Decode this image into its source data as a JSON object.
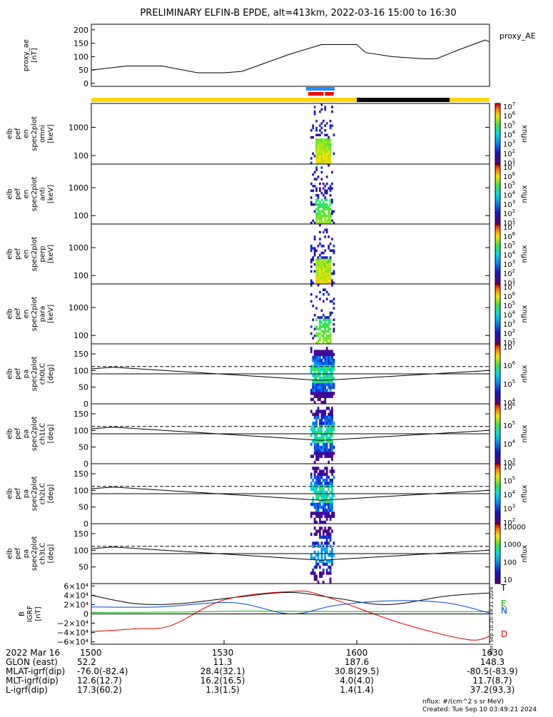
{
  "title": "PRELIMINARY ELFIN-B EPDE, alt=413km, 2022-03-16 15:00 to 16:30",
  "colors": {
    "line": "#000000",
    "bar_yellow": "#ffd800",
    "bar_black": "#000000",
    "bar_blue": "#1e90ff",
    "bar_red": "#ff0000",
    "grf_blue": "#0044cc",
    "grf_green": "#00aa00",
    "grf_red": "#dd0000"
  },
  "chart_data": [
    {
      "id": "proxy_ae",
      "type": "line",
      "ylabel": [
        "proxy_ae",
        "[nT]"
      ],
      "legend": "proxy_AE",
      "ylim": [
        0,
        210
      ],
      "yticks": [
        0,
        50,
        100,
        150,
        200
      ],
      "x": [
        0,
        8,
        16,
        24,
        30,
        34,
        45,
        52,
        60,
        62,
        68,
        75,
        78,
        83,
        89,
        90
      ],
      "values": [
        50,
        65,
        65,
        40,
        40,
        45,
        110,
        145,
        145,
        115,
        100,
        92,
        92,
        125,
        162,
        155
      ]
    },
    {
      "id": "status_bar",
      "type": "bar",
      "segments": [
        {
          "start": 0,
          "end": 60,
          "color": "yellow"
        },
        {
          "start": 60,
          "end": 81,
          "color": "black"
        },
        {
          "start": 81,
          "end": 90,
          "color": "yellow"
        }
      ],
      "markers": [
        {
          "start": 48.5,
          "end": 55.0,
          "color": "blue"
        },
        {
          "start": 49.0,
          "end": 52.5,
          "color": "red"
        },
        {
          "start": 52.8,
          "end": 54.8,
          "color": "red"
        }
      ]
    },
    {
      "id": "spec_omni",
      "type": "heatmap",
      "ylabel": [
        "elb",
        "pef",
        "en",
        "spec2plot",
        "omni",
        "[keV]"
      ],
      "yscale": "log",
      "ylim": [
        50,
        7000
      ],
      "yticks": [
        100,
        1000
      ],
      "zlabel": "nflux",
      "ztick_exponents": [
        1,
        2,
        3,
        4,
        5,
        6,
        7
      ],
      "burst_start_min": 49.5,
      "burst_end_min": 55.0,
      "intensity": "high"
    },
    {
      "id": "spec_anti",
      "type": "heatmap",
      "ylabel": [
        "elb",
        "pef",
        "en",
        "spec2plot",
        "anti",
        "[keV]"
      ],
      "yscale": "log",
      "ylim": [
        50,
        7000
      ],
      "yticks": [
        100,
        1000
      ],
      "zlabel": "nflux",
      "ztick_exponents": [
        1,
        2,
        3,
        4,
        5,
        6,
        7
      ],
      "burst_start_min": 49.5,
      "burst_end_min": 55.0,
      "intensity": "low"
    },
    {
      "id": "spec_perp",
      "type": "heatmap",
      "ylabel": [
        "elb",
        "pef",
        "en",
        "spec2plot",
        "perp",
        "[keV]"
      ],
      "yscale": "log",
      "ylim": [
        50,
        7000
      ],
      "yticks": [
        100,
        1000
      ],
      "zlabel": "nflux",
      "ztick_exponents": [
        1,
        2,
        3,
        4,
        5,
        6,
        7
      ],
      "burst_start_min": 49.5,
      "burst_end_min": 55.0,
      "intensity": "high"
    },
    {
      "id": "spec_para",
      "type": "heatmap",
      "ylabel": [
        "elb",
        "pef",
        "en",
        "spec2plot",
        "para",
        "[keV]"
      ],
      "yscale": "log",
      "ylim": [
        50,
        7000
      ],
      "yticks": [
        100,
        1000
      ],
      "zlabel": "nflux",
      "ztick_exponents": [
        1,
        2,
        3,
        4,
        5,
        6,
        7
      ],
      "burst_start_min": 49.5,
      "burst_end_min": 55.0,
      "intensity": "low"
    },
    {
      "id": "pa_ch0",
      "type": "heatmap",
      "ylabel": [
        "elb",
        "pef",
        "pa",
        "spec2plot",
        "ch0LC",
        "[deg]"
      ],
      "ylim": [
        0,
        180
      ],
      "yticks": [
        0,
        50,
        100,
        150
      ],
      "zlabel": "nflux",
      "ztick_exponents": [
        4,
        5,
        6,
        7
      ],
      "burst_start_min": 49.5,
      "burst_end_min": 55.0,
      "lc_solid": [
        [
          0,
          105
        ],
        [
          5,
          110
        ],
        [
          52,
          70
        ],
        [
          90,
          100
        ]
      ],
      "lc_dashed": 112
    },
    {
      "id": "pa_ch1",
      "type": "heatmap",
      "ylabel": [
        "elb",
        "pef",
        "pa",
        "spec2plot",
        "ch1LC",
        "[deg]"
      ],
      "ylim": [
        0,
        180
      ],
      "yticks": [
        0,
        50,
        100,
        150
      ],
      "zlabel": "nflux",
      "ztick_exponents": [
        3,
        4,
        5,
        6
      ],
      "burst_start_min": 49.5,
      "burst_end_min": 55.0,
      "lc_solid": [
        [
          0,
          105
        ],
        [
          5,
          110
        ],
        [
          52,
          70
        ],
        [
          90,
          100
        ]
      ],
      "lc_dashed": 112
    },
    {
      "id": "pa_ch2",
      "type": "heatmap",
      "ylabel": [
        "elb",
        "pef",
        "pa",
        "spec2plot",
        "ch2LC",
        "[deg]"
      ],
      "ylim": [
        0,
        180
      ],
      "yticks": [
        0,
        50,
        100,
        150
      ],
      "zlabel": "nflux",
      "ztick_exponents": [
        2,
        3,
        4,
        5,
        6
      ],
      "burst_start_min": 49.5,
      "burst_end_min": 55.0,
      "lc_solid": [
        [
          0,
          105
        ],
        [
          5,
          110
        ],
        [
          52,
          70
        ],
        [
          90,
          100
        ]
      ],
      "lc_dashed": 112
    },
    {
      "id": "pa_ch3",
      "type": "heatmap",
      "ylabel": [
        "elb",
        "pef",
        "pa",
        "spec2plot",
        "ch3LC",
        "[deg]"
      ],
      "ylim": [
        0,
        180
      ],
      "yticks": [
        50,
        100,
        150
      ],
      "zlabel": "nflux",
      "zticks": [
        "10",
        "100",
        "1000",
        "10000"
      ],
      "burst_start_min": 49.5,
      "burst_end_min": 55.0,
      "lc_solid": [
        [
          0,
          105
        ],
        [
          5,
          110
        ],
        [
          52,
          70
        ],
        [
          90,
          100
        ]
      ],
      "lc_dashed": 112
    },
    {
      "id": "bgrf",
      "type": "line",
      "ylabel": [
        "B",
        "IGRF",
        "[nT]"
      ],
      "ylim": [
        -65000,
        65000
      ],
      "yticks": [
        {
          "label": "6×10⁴",
          "value": 60000
        },
        {
          "label": "4×10⁴",
          "value": 40000
        },
        {
          "label": "2×10⁴",
          "value": 20000
        },
        {
          "label": "0",
          "value": 0
        },
        {
          "label": "−2×10⁴",
          "value": -20000
        },
        {
          "label": "−4×10⁴",
          "value": -40000
        },
        {
          "label": "−6×10⁴",
          "value": -60000
        }
      ],
      "series": [
        {
          "name": "T",
          "color": "black",
          "x": [
            0,
            10,
            20,
            33,
            45,
            55,
            67,
            80,
            90
          ],
          "values": [
            40000,
            22000,
            22000,
            36000,
            46000,
            34000,
            20000,
            38000,
            45000
          ]
        },
        {
          "name": "E",
          "color": "green",
          "x": [
            0,
            20,
            35,
            55,
            70,
            90
          ],
          "values": [
            3000,
            4000,
            6000,
            5000,
            5000,
            5000
          ]
        },
        {
          "name": "N",
          "color": "blue",
          "x": [
            0,
            15,
            32,
            45,
            55,
            67,
            80,
            90
          ],
          "values": [
            15000,
            15000,
            24000,
            0,
            18000,
            28000,
            24000,
            2000
          ]
        },
        {
          "name": "D",
          "color": "red",
          "x": [
            0,
            10,
            18,
            30,
            45,
            52,
            70,
            85,
            90
          ],
          "values": [
            -38000,
            -32000,
            -25000,
            30000,
            48000,
            40000,
            -20000,
            -55000,
            -48000
          ]
        }
      ],
      "right_label": "Mon Sep 10 20:49:21 2024"
    }
  ],
  "x_axis": {
    "xlim": [
      0,
      90
    ],
    "tick_labels": [
      {
        "label": "1500",
        "value": 0
      },
      {
        "label": "1530",
        "value": 30
      },
      {
        "label": "1600",
        "value": 60
      },
      {
        "label": "1630",
        "value": 90
      }
    ],
    "rows": [
      {
        "label": "2022 Mar 16",
        "values": [
          "1500",
          "1530",
          "1600",
          "1630"
        ]
      },
      {
        "label": "GLON (east)",
        "values": [
          "52.2",
          "11.3",
          "187.6",
          "148.3"
        ]
      },
      {
        "label": "MLAT-igrf(dip)",
        "values": [
          "-76.0(-82.4)",
          "28.4(32.1)",
          "30.8(29.5)",
          "-80.5(-83.9)"
        ]
      },
      {
        "label": "MLT-igrf(dip)",
        "values": [
          "12.6(12.7)",
          "16.2(16.5)",
          "4.0(4.0)",
          "11.7(8.7)"
        ]
      },
      {
        "label": "L-igrf(dip)",
        "values": [
          "17.3(60.2)",
          "1.3(1.5)",
          "1.4(1.4)",
          "37.2(93.3)"
        ]
      }
    ]
  },
  "footer": {
    "units": "nflux: #/(cm^2 s sr MeV)",
    "created": "Created: Tue Sep 10 03:49:21 2024"
  }
}
